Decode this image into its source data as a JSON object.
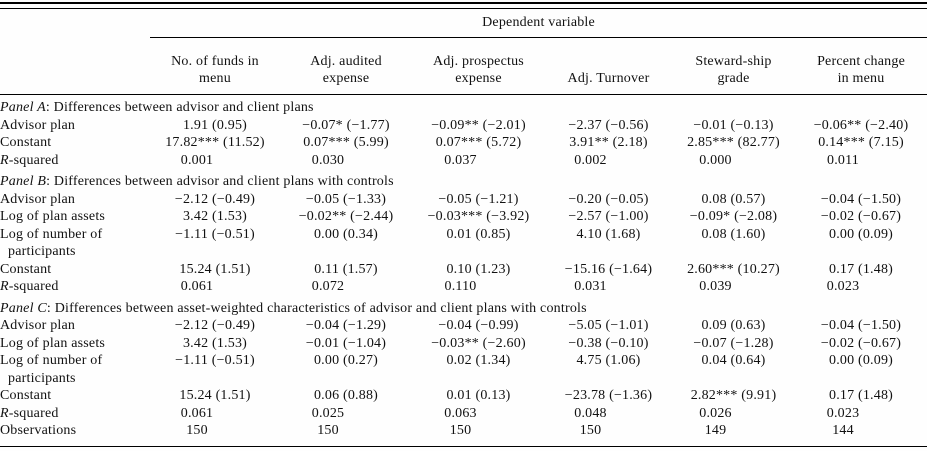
{
  "table": {
    "spanner": "Dependent variable",
    "columns": [
      {
        "lines": [
          "No. of funds in",
          "menu"
        ]
      },
      {
        "lines": [
          "Adj. audited",
          "expense"
        ]
      },
      {
        "lines": [
          "Adj. prospectus",
          "expense"
        ]
      },
      {
        "lines": [
          "Adj. Turnover"
        ]
      },
      {
        "lines": [
          "Steward-ship",
          "grade"
        ]
      },
      {
        "lines": [
          "Percent change",
          "in menu"
        ]
      }
    ],
    "panels": [
      {
        "title_italic": "Panel A",
        "title_rest": ": Differences between advisor and client plans",
        "rows": [
          {
            "label": "Advisor plan",
            "values": [
              "1.91 (0.95)",
              "−0.07* (−1.77)",
              "−0.09** (−2.01)",
              "−2.37 (−0.56)",
              "−0.01 (−0.13)",
              "−0.06** (−2.40)"
            ]
          },
          {
            "label": "Constant",
            "values": [
              "17.82*** (11.52)",
              "0.07*** (5.99)",
              "0.07*** (5.72)",
              "3.91** (2.18)",
              "2.85*** (82.77)",
              "0.14*** (7.15)"
            ]
          },
          {
            "label_italic": "R",
            "label": "-squared",
            "values": [
              "0.001",
              "0.030",
              "0.037",
              "0.002",
              "0.000",
              "0.011"
            ]
          }
        ]
      },
      {
        "title_italic": "Panel B",
        "title_rest": ": Differences between advisor and client plans with controls",
        "rows": [
          {
            "label": "Advisor plan",
            "values": [
              "−2.12 (−0.49)",
              "−0.05 (−1.33)",
              "−0.05 (−1.21)",
              "−0.20 (−0.05)",
              "0.08 (0.57)",
              "−0.04 (−1.50)"
            ]
          },
          {
            "label": "Log of plan assets",
            "values": [
              "3.42 (1.53)",
              "−0.02** (−2.44)",
              "−0.03*** (−3.92)",
              "−2.57 (−1.00)",
              "−0.09* (−2.08)",
              "−0.02 (−0.67)"
            ]
          },
          {
            "label": "Log of number of",
            "label2": "participants",
            "values": [
              "−1.11 (−0.51)",
              "0.00 (0.34)",
              "0.01 (0.85)",
              "4.10 (1.68)",
              "0.08 (1.60)",
              "0.00 (0.09)"
            ]
          },
          {
            "label": "Constant",
            "values": [
              "15.24 (1.51)",
              "0.11 (1.57)",
              "0.10 (1.23)",
              "−15.16 (−1.64)",
              "2.60*** (10.27)",
              "0.17 (1.48)"
            ]
          },
          {
            "label_italic": "R",
            "label": "-squared",
            "values": [
              "0.061",
              "0.072",
              "0.110",
              "0.031",
              "0.039",
              "0.023"
            ]
          }
        ]
      },
      {
        "title_italic": "Panel C",
        "title_rest": ": Differences between asset-weighted characteristics of advisor and client plans with controls",
        "rows": [
          {
            "label": "Advisor plan",
            "values": [
              "−2.12 (−0.49)",
              "−0.04 (−1.29)",
              "−0.04 (−0.99)",
              "−5.05 (−1.01)",
              "0.09 (0.63)",
              "−0.04 (−1.50)"
            ]
          },
          {
            "label": "Log of plan assets",
            "values": [
              "3.42 (1.53)",
              "−0.01 (−1.04)",
              "−0.03** (−2.60)",
              "−0.38 (−0.10)",
              "−0.07 (−1.28)",
              "−0.02 (−0.67)"
            ]
          },
          {
            "label": "Log of number of",
            "label2": "participants",
            "values": [
              "−1.11 (−0.51)",
              "0.00 (0.27)",
              "0.02 (1.34)",
              "4.75 (1.06)",
              "0.04 (0.64)",
              "0.00 (0.09)"
            ]
          },
          {
            "label": "Constant",
            "values": [
              "15.24 (1.51)",
              "0.06 (0.88)",
              "0.01 (0.13)",
              "−23.78 (−1.36)",
              "2.82*** (9.91)",
              "0.17 (1.48)"
            ]
          },
          {
            "label_italic": "R",
            "label": "-squared",
            "values": [
              "0.061",
              "0.025",
              "0.063",
              "0.048",
              "0.026",
              "0.023"
            ]
          },
          {
            "label": "Observations",
            "values": [
              "150",
              "150",
              "150",
              "150",
              "149",
              "144"
            ]
          }
        ]
      }
    ]
  }
}
